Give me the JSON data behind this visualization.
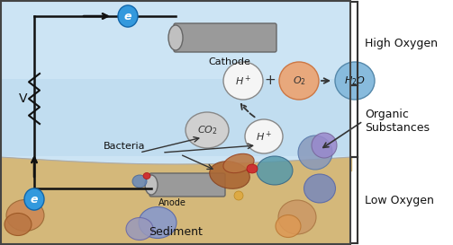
{
  "fig_width": 5.03,
  "fig_height": 2.73,
  "dpi": 100,
  "bg_color": "#ffffff",
  "water_color": "#b8d8ee",
  "water_top_color": "#cce4f4",
  "sediment_color": "#d4b87a",
  "border_color": "#444444",
  "wire_color": "#111111",
  "cathode_body_color": "#9a9a9a",
  "cathode_end_color": "#c0c0c0",
  "anode_body_color": "#9a9a9a",
  "anode_end_color": "#c0c0c0",
  "electron_fill": "#3399dd",
  "electron_edge": "#1166aa",
  "electron_text": "#ffffff",
  "hplus_fill": "#f5f5f5",
  "hplus_edge": "#888888",
  "co2_fill": "#d0d0d0",
  "co2_edge": "#888888",
  "o2_fill": "#e8a87c",
  "o2_edge": "#cc7744",
  "h2o_fill": "#88bbdd",
  "h2o_edge": "#5588aa",
  "bracket_color": "#333333",
  "arrow_color": "#111111",
  "text_color": "#111111",
  "bacteria_blob_colors": [
    "#cc8855",
    "#aa7733",
    "#cc9966",
    "#bb8855"
  ],
  "sediment_blob_colors_blue": [
    "#8899cc",
    "#9999cc",
    "#7788bb",
    "#9999bb"
  ],
  "sediment_blob_colors_orange": [
    "#cc9966",
    "#dd8855",
    "#bb8844"
  ],
  "voltage_label": "V",
  "cathode_label": "Cathode",
  "anode_label": "Anode",
  "bacteria_label": "Bacteria",
  "sediment_label": "Sediment"
}
